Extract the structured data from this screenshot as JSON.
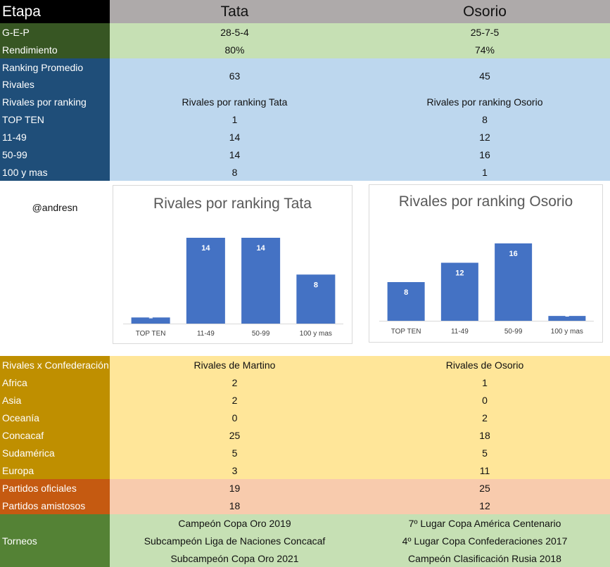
{
  "header": {
    "label": "Etapa",
    "col1": "Tata",
    "col2": "Osorio"
  },
  "summary": [
    {
      "label": "G-E-P",
      "v1": "28-5-4",
      "v2": "25-7-5"
    },
    {
      "label": "Rendimiento",
      "v1": "80%",
      "v2": "74%"
    }
  ],
  "ranking_promedio": {
    "label1": "Ranking Promedio",
    "label2": "Rivales",
    "v1": "63",
    "v2": "45"
  },
  "ranking_rows": [
    {
      "label": "Rivales por ranking",
      "v1": "Rivales por ranking Tata",
      "v2": "Rivales por ranking Osorio"
    },
    {
      "label": "TOP TEN",
      "v1": "1",
      "v2": "8"
    },
    {
      "label": "11-49",
      "v1": "14",
      "v2": "12"
    },
    {
      "label": "50-99",
      "v1": "14",
      "v2": "16"
    },
    {
      "label": "100 y mas",
      "v1": "8",
      "v2": "1"
    }
  ],
  "handle": "@andresn",
  "chart_data": [
    {
      "type": "bar",
      "title": "Rivales por ranking Tata",
      "categories": [
        "TOP TEN",
        "11-49",
        "50-99",
        "100 y mas"
      ],
      "values": [
        1,
        14,
        14,
        8
      ],
      "ylim": [
        0,
        14
      ],
      "grid": false,
      "bar_color": "#4472c4"
    },
    {
      "type": "bar",
      "title": "Rivales por ranking Osorio",
      "categories": [
        "TOP TEN",
        "11-49",
        "50-99",
        "100 y mas"
      ],
      "values": [
        8,
        12,
        16,
        1
      ],
      "ylim": [
        0,
        16
      ],
      "grid": false,
      "bar_color": "#4472c4"
    }
  ],
  "confed_rows": [
    {
      "label": "Rivales x Confederación",
      "v1": "Rivales de Martino",
      "v2": "Rivales de Osorio"
    },
    {
      "label": "Africa",
      "v1": "2",
      "v2": "1"
    },
    {
      "label": "Asia",
      "v1": "2",
      "v2": "0"
    },
    {
      "label": "Oceanía",
      "v1": "0",
      "v2": "2"
    },
    {
      "label": "Concacaf",
      "v1": "25",
      "v2": "18"
    },
    {
      "label": "Sudamérica",
      "v1": "5",
      "v2": "5"
    },
    {
      "label": "Europa",
      "v1": "3",
      "v2": "11"
    }
  ],
  "partidos_rows": [
    {
      "label": "Partidos oficiales",
      "v1": "19",
      "v2": "25"
    },
    {
      "label": "Partidos amistosos",
      "v1": "18",
      "v2": "12"
    }
  ],
  "torneos": {
    "label": "Torneos",
    "col1": [
      "Campeón Copa Oro 2019",
      "Subcampeón Liga de Naciones Concacaf",
      "Subcampeón Copa Oro 2021"
    ],
    "col2": [
      "7º Lugar Copa América Centenario",
      "4º Lugar Copa Confederaciones 2017",
      "Campeón Clasificación Rusia 2018"
    ]
  },
  "colors": {
    "header_label_bg": "#000000",
    "header_bg": "#aeaaaa",
    "summary_label_bg": "#375623",
    "summary_bg": "#c6e0b4",
    "ranking_label_bg": "#1f4e79",
    "ranking_bg": "#bdd7ee",
    "confed_label_bg": "#bf8f00",
    "confed_bg": "#ffe699",
    "partidos_label_bg": "#c55a11",
    "partidos_bg": "#f8cbad",
    "torneos_label_bg": "#548235",
    "torneos_bg": "#c6e0b4"
  }
}
